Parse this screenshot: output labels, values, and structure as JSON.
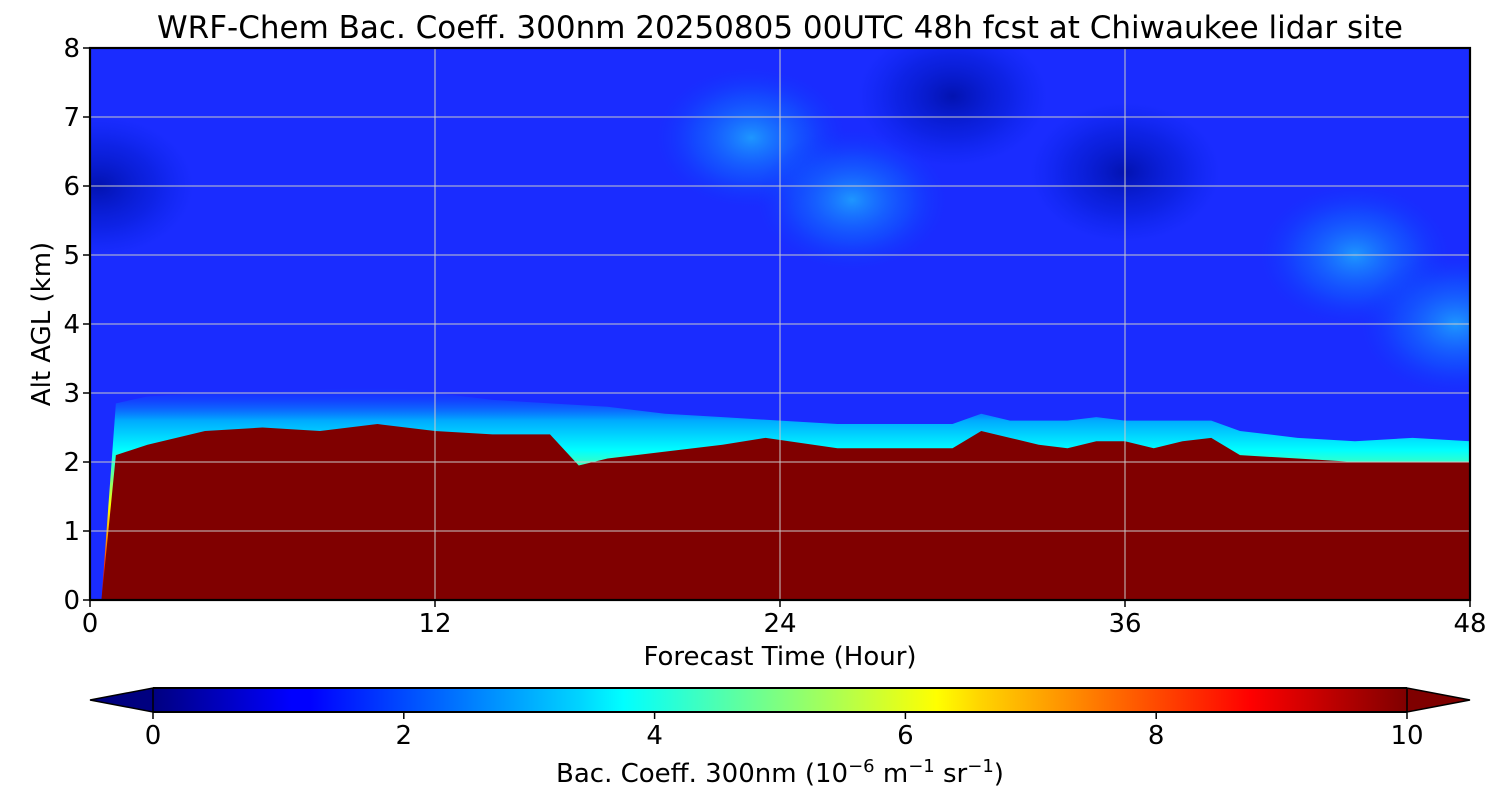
{
  "chart_data": {
    "type": "heatmap",
    "title": "WRF-Chem Bac. Coeff. 300nm  20250805 00UTC 48h fcst at Chiwaukee lidar site",
    "xlabel": "Forecast Time (Hour)",
    "ylabel": "Alt AGL (km)",
    "xlim": [
      0,
      48
    ],
    "ylim": [
      0,
      8
    ],
    "xticks": [
      "0",
      "12",
      "24",
      "36",
      "48"
    ],
    "yticks": [
      "0",
      "1",
      "2",
      "3",
      "4",
      "5",
      "6",
      "7",
      "8"
    ],
    "grid": true,
    "colorbar": {
      "label_main": "Bac. Coeff. 300nm  (10",
      "label_exp1": "−6",
      "label_m": " m",
      "label_exp2": "−1",
      "label_sr": " sr",
      "label_exp3": "−1",
      "label_close": ")",
      "range": [
        0,
        10
      ],
      "ticks": [
        "0",
        "2",
        "4",
        "6",
        "8",
        "10"
      ],
      "extend": "both",
      "colormap": "jet"
    },
    "saturated_top_km": [
      [
        0.0,
        0.0
      ],
      [
        0.4,
        0.0
      ],
      [
        0.9,
        2.1
      ],
      [
        2,
        2.25
      ],
      [
        4,
        2.45
      ],
      [
        6,
        2.5
      ],
      [
        8,
        2.45
      ],
      [
        10,
        2.55
      ],
      [
        12,
        2.45
      ],
      [
        14,
        2.4
      ],
      [
        16,
        2.4
      ],
      [
        17,
        1.95
      ],
      [
        18,
        2.05
      ],
      [
        20,
        2.15
      ],
      [
        22,
        2.25
      ],
      [
        23.5,
        2.35
      ],
      [
        26,
        2.2
      ],
      [
        28,
        2.2
      ],
      [
        30,
        2.2
      ],
      [
        31,
        2.45
      ],
      [
        32,
        2.35
      ],
      [
        33,
        2.25
      ],
      [
        34,
        2.2
      ],
      [
        35,
        2.3
      ],
      [
        36,
        2.3
      ],
      [
        37,
        2.2
      ],
      [
        38,
        2.3
      ],
      [
        39,
        2.35
      ],
      [
        40,
        2.1
      ],
      [
        42,
        2.05
      ],
      [
        44,
        2.0
      ],
      [
        46,
        2.0
      ],
      [
        48,
        2.0
      ]
    ],
    "boundary_top_km": [
      [
        0.0,
        0.0
      ],
      [
        0.4,
        0.0
      ],
      [
        0.9,
        2.85
      ],
      [
        2,
        2.95
      ],
      [
        4,
        3.0
      ],
      [
        6,
        3.0
      ],
      [
        8,
        3.05
      ],
      [
        10,
        3.1
      ],
      [
        12,
        3.0
      ],
      [
        14,
        2.9
      ],
      [
        16,
        2.85
      ],
      [
        18,
        2.8
      ],
      [
        20,
        2.7
      ],
      [
        22,
        2.65
      ],
      [
        24,
        2.6
      ],
      [
        26,
        2.55
      ],
      [
        28,
        2.55
      ],
      [
        30,
        2.55
      ],
      [
        31,
        2.7
      ],
      [
        32,
        2.6
      ],
      [
        34,
        2.6
      ],
      [
        35,
        2.65
      ],
      [
        36,
        2.6
      ],
      [
        38,
        2.6
      ],
      [
        39,
        2.6
      ],
      [
        40,
        2.45
      ],
      [
        42,
        2.35
      ],
      [
        44,
        2.3
      ],
      [
        46,
        2.35
      ],
      [
        48,
        2.3
      ]
    ],
    "aloft_patches": [
      {
        "x": 23,
        "y": 6.7,
        "value": 2.8
      },
      {
        "x": 26.5,
        "y": 5.8,
        "value": 2.7
      },
      {
        "x": 44,
        "y": 5.0,
        "value": 2.5
      },
      {
        "x": 47.5,
        "y": 4.0,
        "value": 2.6
      },
      {
        "x": 36,
        "y": 6.2,
        "value": 0.7
      },
      {
        "x": 30,
        "y": 7.3,
        "value": 0.6
      },
      {
        "x": 0.3,
        "y": 6.0,
        "value": 0.8
      }
    ]
  }
}
